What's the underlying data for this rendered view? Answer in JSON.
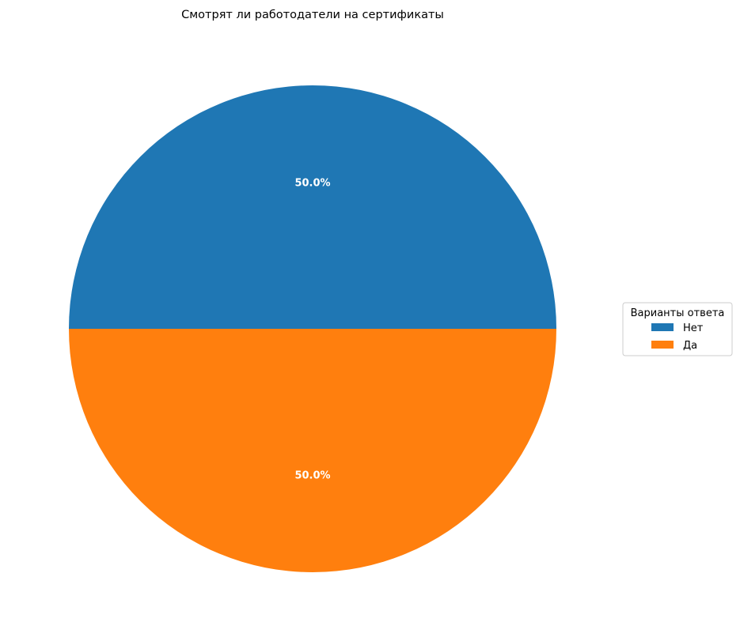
{
  "chart_data": {
    "type": "pie",
    "title": "Смотрят ли работодатели на сертификаты",
    "categories": [
      "Нет",
      "Да"
    ],
    "values": [
      50.0,
      50.0
    ],
    "percent_labels": [
      "50.0%",
      "50.0%"
    ],
    "colors": [
      "#1f77b4",
      "#ff7f0e"
    ],
    "start_angle_deg": 0,
    "direction": "counterclockwise",
    "legend": {
      "title": "Варианты ответа",
      "placement": "center-right",
      "entries": [
        "Нет",
        "Да"
      ]
    }
  }
}
